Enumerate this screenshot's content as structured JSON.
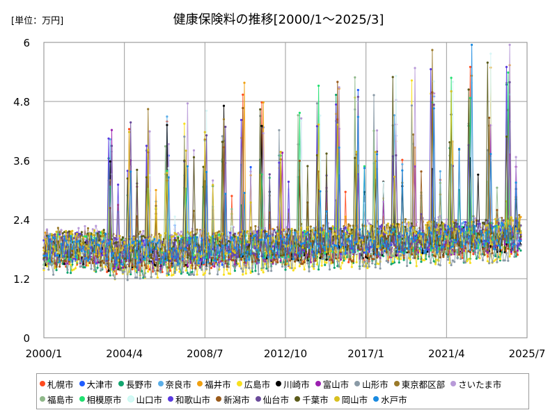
{
  "chart_data": {
    "type": "line",
    "title": "健康保険料の推移[2000/1～2025/3]",
    "unit_label": "[単位：万円]",
    "xlabel": "",
    "ylabel": "",
    "ylim": [
      0,
      6
    ],
    "yticks": [
      "0",
      "1.2",
      "2.4",
      "3.6",
      "4.8",
      "6"
    ],
    "xticks": [
      "2000/1",
      "2004/4",
      "2008/7",
      "2012/10",
      "2017/1",
      "2021/4",
      "2025/7"
    ],
    "grid": true,
    "legend_position": "bottom",
    "series": [
      {
        "name": "札幌市",
        "color": "#ff4b1f"
      },
      {
        "name": "大津市",
        "color": "#1f5cff"
      },
      {
        "name": "長野市",
        "color": "#12a56f"
      },
      {
        "name": "奈良市",
        "color": "#5aaee8"
      },
      {
        "name": "福井市",
        "color": "#f0a010"
      },
      {
        "name": "広島市",
        "color": "#f8e020"
      },
      {
        "name": "川崎市",
        "color": "#000000"
      },
      {
        "name": "富山市",
        "color": "#9b1fb0"
      },
      {
        "name": "山形市",
        "color": "#8a9aa6"
      },
      {
        "name": "東京都区部",
        "color": "#9a7a2a"
      },
      {
        "name": "さいたま市",
        "color": "#b89ad8"
      },
      {
        "name": "福島市",
        "color": "#8fb88a"
      },
      {
        "name": "相模原市",
        "color": "#20e070"
      },
      {
        "name": "山口市",
        "color": "#d8f6f6"
      },
      {
        "name": "和歌山市",
        "color": "#5a3ae0"
      },
      {
        "name": "新潟市",
        "color": "#9a5a1a"
      },
      {
        "name": "仙台市",
        "color": "#6a4a9a"
      },
      {
        "name": "千葉市",
        "color": "#5a5a1a"
      },
      {
        "name": "岡山市",
        "color": "#d8c020"
      },
      {
        "name": "水戸市",
        "color": "#1a8ae0"
      }
    ]
  }
}
